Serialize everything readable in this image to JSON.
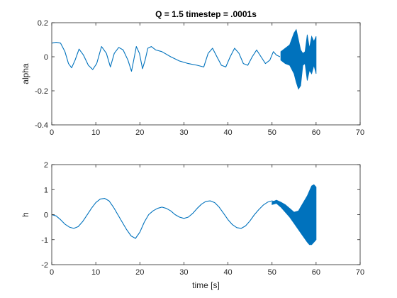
{
  "chart_data": [
    {
      "type": "line",
      "title": "Q = 1.5 timestep = .0001s",
      "xlabel": "",
      "ylabel": "alpha",
      "xlim": [
        0,
        70
      ],
      "ylim": [
        -0.4,
        0.2
      ],
      "xticks": [
        0,
        10,
        20,
        30,
        40,
        50,
        60,
        70
      ],
      "xtick_labels": [
        "0",
        "10",
        "20",
        "30",
        "40",
        "50",
        "60",
        "70"
      ],
      "yticks": [
        -0.4,
        -0.2,
        0,
        0.2
      ],
      "ytick_labels": [
        "-0.4",
        "-0.2",
        "0",
        "0.2"
      ],
      "grid": false,
      "color": "#0072BD",
      "series": [
        {
          "x": [
            0,
            1,
            2,
            3,
            3.8,
            4.5,
            5.3,
            6.2,
            7.2,
            8.3,
            9.3,
            10.2,
            11.3,
            12.4,
            13.3,
            14.2,
            15.2,
            16.2,
            17.3,
            18.1,
            18.6,
            19.2,
            19.9,
            20.6,
            21.2,
            21.8,
            22.6,
            23.6,
            25,
            27,
            29,
            31,
            33,
            34.5,
            35.5,
            36.5,
            37.5,
            38.5,
            39.5,
            40.5,
            41.5,
            42.5,
            43.5,
            44.5,
            45.5,
            46.5,
            47.5,
            48.5,
            49.5,
            50.3,
            51,
            51.8
          ],
          "y": [
            0.08,
            0.085,
            0.08,
            0.03,
            -0.04,
            -0.065,
            -0.02,
            0.045,
            0.01,
            -0.05,
            -0.075,
            -0.04,
            0.06,
            0.02,
            -0.06,
            0.02,
            0.055,
            0.04,
            -0.02,
            -0.085,
            -0.02,
            0.06,
            0.02,
            -0.07,
            -0.02,
            0.05,
            0.06,
            0.04,
            0.03,
            0,
            -0.025,
            -0.04,
            -0.05,
            -0.06,
            0.02,
            0.05,
            0.0,
            -0.05,
            -0.06,
            0.0,
            0.05,
            0.02,
            -0.04,
            -0.05,
            0.0,
            0.04,
            0.0,
            -0.04,
            -0.02,
            0.03,
            0.01,
            0.0
          ],
          "band_envelope": {
            "x": [
              52,
              53,
              54,
              55,
              55.5,
              56,
              56.5,
              57,
              57.5,
              58,
              58.5,
              59,
              59.5,
              60
            ],
            "y_upper": [
              0.03,
              0.05,
              0.07,
              0.14,
              0.16,
              0.1,
              0.04,
              0.02,
              0.03,
              0.13,
              0.05,
              0.12,
              0.09,
              0.12
            ],
            "y_lower": [
              -0.02,
              -0.04,
              -0.05,
              -0.1,
              -0.15,
              -0.19,
              -0.17,
              -0.05,
              -0.04,
              -0.14,
              -0.08,
              -0.1,
              -0.05,
              -0.1
            ]
          }
        }
      ]
    },
    {
      "type": "line",
      "title": "",
      "xlabel": "time [s]",
      "ylabel": "h",
      "xlim": [
        0,
        70
      ],
      "ylim": [
        -2,
        2
      ],
      "xticks": [
        0,
        10,
        20,
        30,
        40,
        50,
        60,
        70
      ],
      "xtick_labels": [
        "0",
        "10",
        "20",
        "30",
        "40",
        "50",
        "60",
        "70"
      ],
      "yticks": [
        -2,
        -1,
        0,
        1,
        2
      ],
      "ytick_labels": [
        "-2",
        "-1",
        "0",
        "1",
        "2"
      ],
      "grid": false,
      "color": "#0072BD",
      "series": [
        {
          "x": [
            0,
            1,
            2,
            3,
            4,
            5,
            6,
            7,
            8,
            9,
            10,
            11,
            12,
            13,
            14,
            15,
            16,
            17,
            18,
            19,
            20,
            21,
            22,
            23,
            24,
            25,
            26,
            27,
            28,
            29,
            30,
            31,
            32,
            33,
            34,
            35,
            36,
            37,
            38,
            39,
            40,
            41,
            42,
            43,
            44,
            45,
            46,
            47,
            48,
            49,
            50,
            51,
            52,
            53,
            54
          ],
          "y": [
            0,
            -0.05,
            -0.2,
            -0.38,
            -0.5,
            -0.55,
            -0.48,
            -0.28,
            -0.02,
            0.25,
            0.48,
            0.62,
            0.65,
            0.55,
            0.3,
            0.0,
            -0.3,
            -0.6,
            -0.85,
            -0.95,
            -0.7,
            -0.3,
            0.0,
            0.15,
            0.25,
            0.3,
            0.25,
            0.15,
            0.0,
            -0.1,
            -0.15,
            -0.1,
            0.05,
            0.25,
            0.42,
            0.53,
            0.55,
            0.48,
            0.3,
            0.05,
            -0.2,
            -0.4,
            -0.52,
            -0.55,
            -0.45,
            -0.25,
            0.0,
            0.2,
            0.38,
            0.5,
            0.55,
            0.5,
            0.38,
            0.25,
            0.1
          ],
          "band_envelope": {
            "x": [
              50,
              51,
              52,
              53,
              54,
              55,
              56,
              57,
              58,
              58.5,
              59,
              59.5,
              60
            ],
            "y_upper": [
              0.5,
              0.58,
              0.5,
              0.4,
              0.25,
              0.1,
              0.15,
              0.45,
              0.75,
              0.95,
              1.15,
              1.2,
              1.1
            ],
            "y_lower": [
              0.4,
              0.45,
              0.3,
              0.1,
              -0.1,
              -0.35,
              -0.6,
              -0.85,
              -1.1,
              -1.2,
              -1.2,
              -1.1,
              -1.0
            ]
          }
        }
      ]
    }
  ]
}
